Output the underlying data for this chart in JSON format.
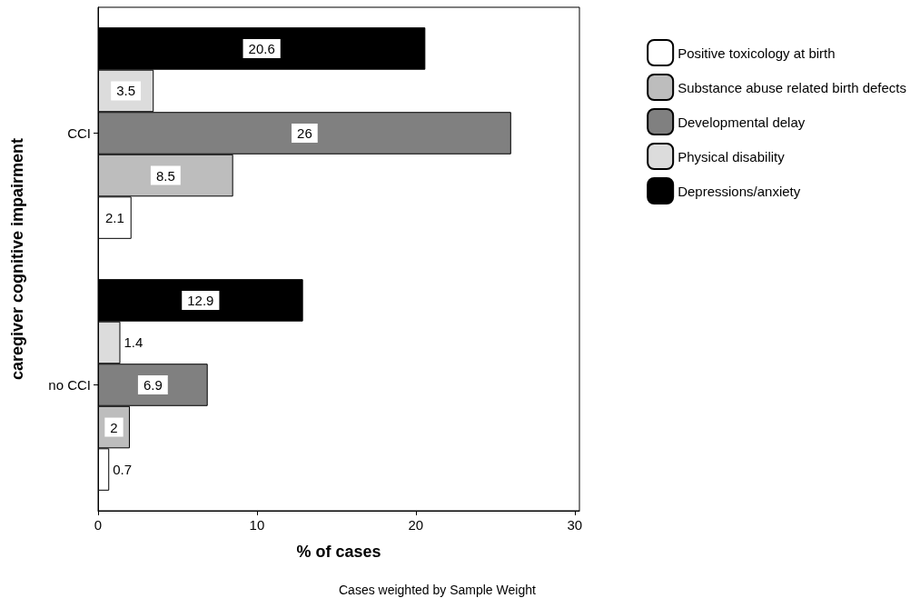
{
  "chart_data": {
    "type": "bar",
    "orientation": "horizontal",
    "categories": [
      "CCI",
      "no CCI"
    ],
    "series": [
      {
        "name": "Positive toxicology at birth",
        "color": "#ffffff",
        "values": [
          2.1,
          0.7
        ]
      },
      {
        "name": "Substance abuse related birth defects",
        "color": "#bdbdbd",
        "values": [
          8.5,
          2
        ]
      },
      {
        "name": "Developmental delay",
        "color": "#808080",
        "values": [
          26,
          6.9
        ]
      },
      {
        "name": "Physical disability",
        "color": "#dcdcdc",
        "values": [
          3.5,
          1.4
        ]
      },
      {
        "name": "Depressions/anxiety",
        "color": "#000000",
        "values": [
          20.6,
          12.9
        ]
      }
    ],
    "xlabel": "% of cases",
    "ylabel": "caregiver cognitive impairment",
    "xlim": [
      0,
      30.3
    ],
    "xticks": [
      0,
      10,
      20,
      30
    ],
    "data_labels": true,
    "legend": "right",
    "grid": false,
    "annotations": [
      "Cases weighted by Sample Weight"
    ]
  }
}
